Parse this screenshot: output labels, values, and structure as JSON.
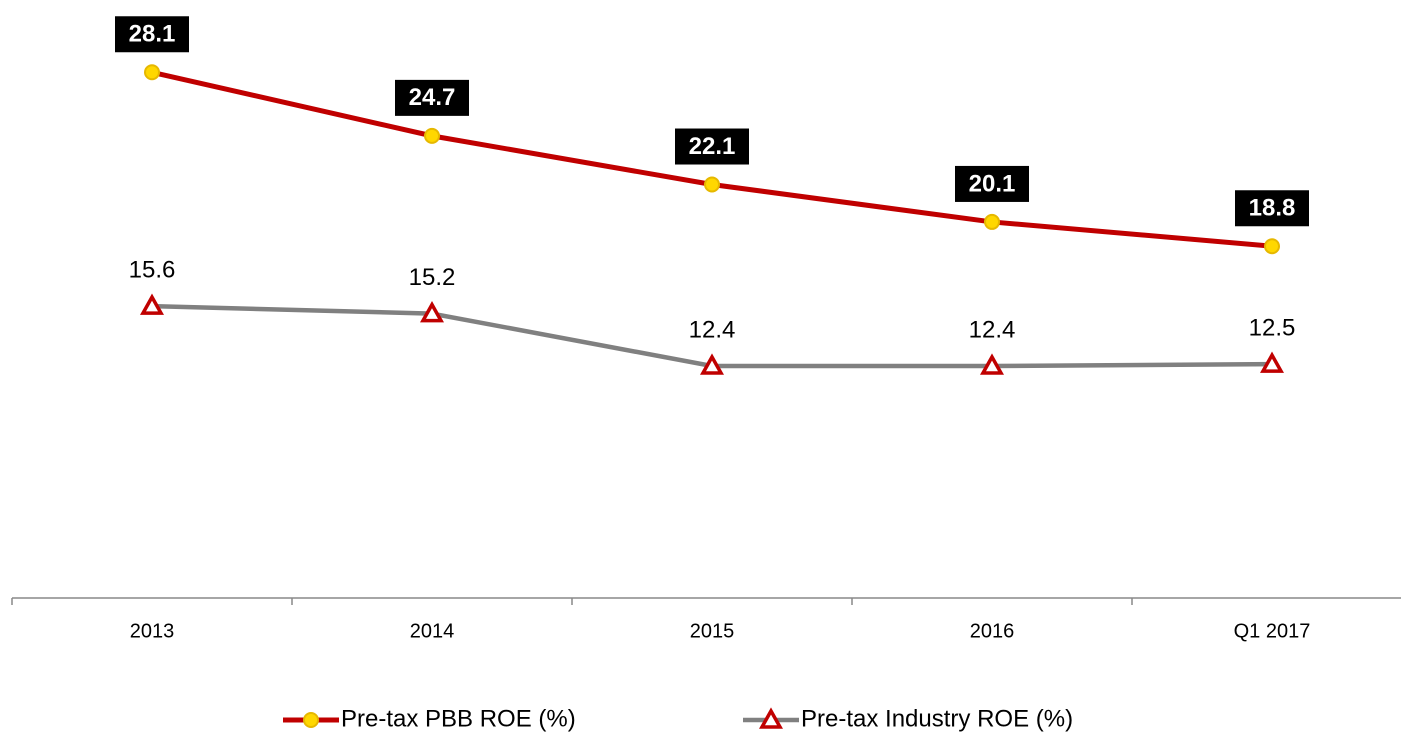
{
  "chart_data": {
    "type": "line",
    "categories": [
      "2013",
      "2014",
      "2015",
      "2016",
      "Q1 2017"
    ],
    "series": [
      {
        "name": "Pre-tax PBB ROE (%)",
        "color": "#c00000",
        "marker_color": "#ffd700",
        "values": [
          28.1,
          24.7,
          22.1,
          20.1,
          18.8
        ]
      },
      {
        "name": "Pre-tax Industry ROE (%)",
        "color": "#808080",
        "marker_color": "#c00000",
        "values": [
          15.6,
          15.2,
          12.4,
          12.4,
          12.5
        ]
      }
    ],
    "ylim": [
      0,
      31
    ],
    "legend": "bottom"
  }
}
